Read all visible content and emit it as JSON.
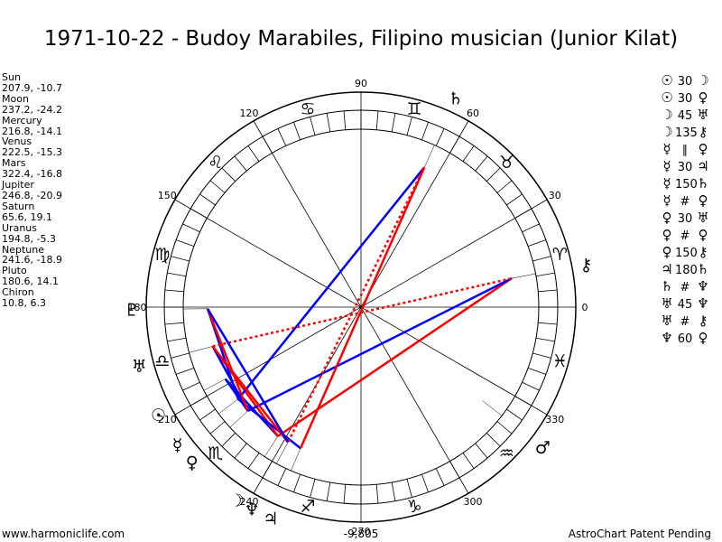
{
  "title": "1971-10-22 - Budoy Marabiles, Filipino musician (Junior Kilat)",
  "planets": [
    {
      "name": "Sun",
      "coords": "207.9, -10.7",
      "lon": 207.9,
      "symbol": "☉",
      "color": "#000000"
    },
    {
      "name": "Moon",
      "coords": "237.2, -24.2",
      "lon": 237.2,
      "symbol": "☽",
      "color": "#000000"
    },
    {
      "name": "Mercury",
      "coords": "216.8, -14.1",
      "lon": 216.8,
      "symbol": "☿",
      "color": "#000000"
    },
    {
      "name": "Venus",
      "coords": "222.5, -15.3",
      "lon": 222.5,
      "symbol": "♀",
      "color": "#000000"
    },
    {
      "name": "Mars",
      "coords": "322.4, -16.8",
      "lon": 322.4,
      "symbol": "♂",
      "color": "#000000"
    },
    {
      "name": "Jupiter",
      "coords": "246.8, -20.9",
      "lon": 246.8,
      "symbol": "♃",
      "color": "#000000"
    },
    {
      "name": "Saturn",
      "coords": "65.6, 19.1",
      "lon": 65.6,
      "symbol": "♄",
      "color": "#000000"
    },
    {
      "name": "Uranus",
      "coords": "194.8, -5.3",
      "lon": 194.8,
      "symbol": "♅",
      "color": "#000000"
    },
    {
      "name": "Neptune",
      "coords": "241.6, -18.9",
      "lon": 241.6,
      "symbol": "♆",
      "color": "#000000"
    },
    {
      "name": "Pluto",
      "coords": "180.6, 14.1",
      "lon": 180.6,
      "symbol": "♇",
      "color": "#000000"
    },
    {
      "name": "Chiron",
      "coords": "10.8, 6.3",
      "lon": 10.8,
      "symbol": "⚷",
      "color": "#000000"
    }
  ],
  "aspect_list": [
    {
      "p1": "☉",
      "angle": "30",
      "p2": "☽"
    },
    {
      "p1": "☉",
      "angle": "30",
      "p2": "♀"
    },
    {
      "p1": "☽",
      "angle": "45",
      "p2": "♅"
    },
    {
      "p1": "☽",
      "angle": "135",
      "p2": "⚷"
    },
    {
      "p1": "☿",
      "angle": "∥",
      "p2": "♀"
    },
    {
      "p1": "☿",
      "angle": "30",
      "p2": "♃"
    },
    {
      "p1": "☿",
      "angle": "150",
      "p2": "♄"
    },
    {
      "p1": "☿",
      "angle": "#",
      "p2": "♀"
    },
    {
      "p1": "♀",
      "angle": "30",
      "p2": "♅"
    },
    {
      "p1": "♀",
      "angle": "#",
      "p2": "♀"
    },
    {
      "p1": "♀",
      "angle": "150",
      "p2": "⚷"
    },
    {
      "p1": "♃",
      "angle": "180",
      "p2": "♄"
    },
    {
      "p1": "♄",
      "angle": "#",
      "p2": "♆"
    },
    {
      "p1": "♅",
      "angle": "45",
      "p2": "♆"
    },
    {
      "p1": "♅",
      "angle": "#",
      "p2": "⚷"
    },
    {
      "p1": "♆",
      "angle": "60",
      "p2": "♀"
    }
  ],
  "degree_labels": [
    "0",
    "30",
    "60",
    "90",
    "120",
    "150",
    "180",
    "210",
    "240",
    "270",
    "300",
    "330"
  ],
  "zodiac": [
    "♈",
    "♉",
    "♊",
    "♋",
    "♌",
    "♍",
    "♎",
    "♏",
    "♐",
    "♑",
    "♒",
    "♓"
  ],
  "aspect_lines": [
    {
      "from": "Sun",
      "to": "Moon",
      "color": "#0000ff",
      "style": "solid"
    },
    {
      "from": "Sun",
      "to": "Venus",
      "color": "#0000ff",
      "style": "solid"
    },
    {
      "from": "Moon",
      "to": "Uranus",
      "color": "#ff0000",
      "style": "solid"
    },
    {
      "from": "Moon",
      "to": "Chiron",
      "color": "#ff0000",
      "style": "solid"
    },
    {
      "from": "Mercury",
      "to": "Jupiter",
      "color": "#0000ff",
      "style": "solid"
    },
    {
      "from": "Mercury",
      "to": "Saturn",
      "color": "#0000ff",
      "style": "solid"
    },
    {
      "from": "Mercury",
      "to": "Pluto",
      "color": "#0000ff",
      "style": "solid"
    },
    {
      "from": "Venus",
      "to": "Uranus",
      "color": "#0000ff",
      "style": "solid"
    },
    {
      "from": "Venus",
      "to": "Pluto",
      "color": "#ff0000",
      "style": "solid"
    },
    {
      "from": "Venus",
      "to": "Chiron",
      "color": "#0000ff",
      "style": "solid"
    },
    {
      "from": "Jupiter",
      "to": "Saturn",
      "color": "#ff0000",
      "style": "solid"
    },
    {
      "from": "Saturn",
      "to": "Neptune",
      "color": "#ff0000",
      "style": "dotted"
    },
    {
      "from": "Uranus",
      "to": "Neptune",
      "color": "#ff0000",
      "style": "solid"
    },
    {
      "from": "Uranus",
      "to": "Chiron",
      "color": "#ff0000",
      "style": "dotted"
    },
    {
      "from": "Neptune",
      "to": "Pluto",
      "color": "#0000ff",
      "style": "solid"
    }
  ],
  "center_value": "-9,805",
  "footer_left": "www.harmoniclife.com",
  "footer_right": "AstroChart Patent Pending"
}
